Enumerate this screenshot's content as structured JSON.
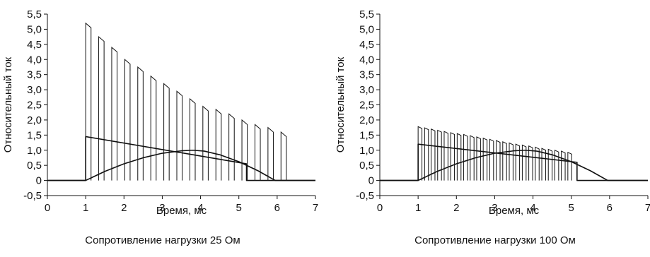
{
  "chart_data": [
    {
      "type": "line",
      "title": "",
      "caption": "Сопротивление нагрузки 25 Ом",
      "xlabel": "Время, мс",
      "ylabel": "Относительный ток",
      "xlim": [
        0,
        7
      ],
      "ylim": [
        -0.5,
        5.5
      ],
      "x_ticks": [
        "0",
        "1",
        "2",
        "3",
        "4",
        "5",
        "6",
        "7"
      ],
      "y_ticks": [
        "-0,5",
        "0",
        "0,5",
        "1,0",
        "1,5",
        "2,0",
        "2,5",
        "3,0",
        "3,5",
        "4,0",
        "4,5",
        "5,0",
        "5,5"
      ],
      "grid": false,
      "series": [
        {
          "kind": "pulses",
          "start": 1.0,
          "period": 0.34,
          "width": 0.14,
          "peaks": [
            5.2,
            4.75,
            4.4,
            4.0,
            3.75,
            3.45,
            3.2,
            2.95,
            2.7,
            2.45,
            2.35,
            2.2,
            2.0,
            1.85,
            1.75,
            1.6
          ],
          "sag": 0.15
        },
        {
          "kind": "line",
          "x": [
            0,
            1.0,
            1.0,
            5.2,
            5.2,
            7
          ],
          "y": [
            0,
            0,
            1.45,
            0.55,
            0,
            0
          ]
        },
        {
          "kind": "line",
          "x": [
            0,
            1.0,
            1.5,
            2.0,
            2.5,
            3.0,
            3.5,
            3.8,
            4.1,
            4.5,
            5.0,
            5.5,
            5.95,
            7
          ],
          "y": [
            0,
            0,
            0.3,
            0.55,
            0.75,
            0.9,
            0.98,
            1.0,
            0.97,
            0.85,
            0.62,
            0.32,
            0,
            0
          ]
        }
      ]
    },
    {
      "type": "line",
      "title": "",
      "caption": "Сопротивление нагрузки 100 Ом",
      "xlabel": "Время, мс",
      "ylabel": "Относительный ток",
      "xlim": [
        0,
        7
      ],
      "ylim": [
        -0.5,
        5.5
      ],
      "x_ticks": [
        "0",
        "1",
        "2",
        "3",
        "4",
        "5",
        "6",
        "7"
      ],
      "y_ticks": [
        "-0,5",
        "0",
        "0,5",
        "1,0",
        "1,5",
        "2,0",
        "2,5",
        "3,0",
        "3,5",
        "4,0",
        "4,5",
        "5,0",
        "5,5"
      ],
      "grid": false,
      "series": [
        {
          "kind": "pulses",
          "start": 1.0,
          "period": 0.17,
          "width": 0.1,
          "peaks": [
            1.78,
            1.74,
            1.7,
            1.66,
            1.62,
            1.58,
            1.55,
            1.52,
            1.48,
            1.44,
            1.4,
            1.36,
            1.32,
            1.28,
            1.24,
            1.2,
            1.17,
            1.14,
            1.1,
            1.06,
            1.03,
            1.0,
            0.97,
            0.93
          ],
          "sag": 0.06
        },
        {
          "kind": "line",
          "x": [
            0,
            1.0,
            1.0,
            5.15,
            5.15,
            7
          ],
          "y": [
            0,
            0,
            1.2,
            0.6,
            0,
            0
          ]
        },
        {
          "kind": "line",
          "x": [
            0,
            1.0,
            1.5,
            2.0,
            2.5,
            3.0,
            3.5,
            3.8,
            4.1,
            4.5,
            5.0,
            5.5,
            5.95,
            7
          ],
          "y": [
            0,
            0,
            0.3,
            0.55,
            0.75,
            0.9,
            0.98,
            1.0,
            0.97,
            0.85,
            0.62,
            0.32,
            0,
            0
          ]
        }
      ]
    }
  ]
}
